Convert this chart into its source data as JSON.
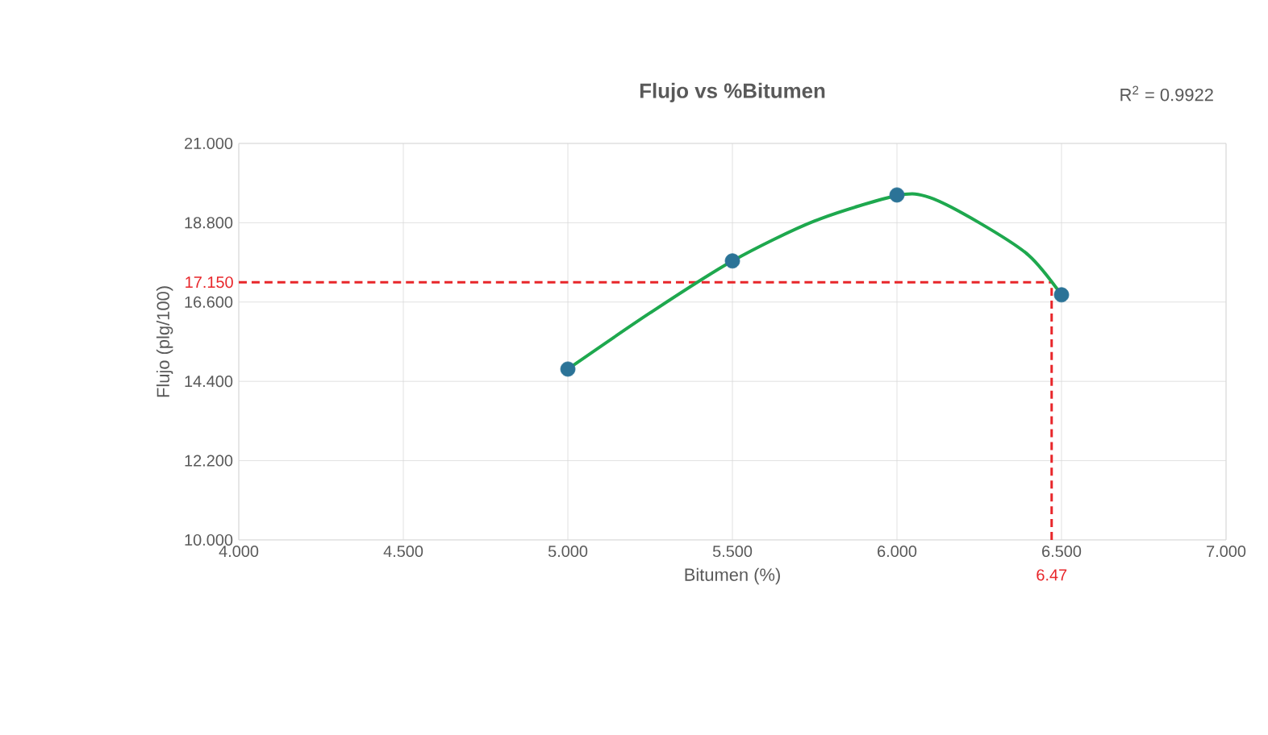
{
  "chart_data": {
    "type": "scatter",
    "title": "Flujo vs %Bitumen",
    "xlabel": "Bitumen (%)",
    "ylabel": "Flujo (plg/100)",
    "annotations": [
      "R$^{2}$ = 0.9922"
    ],
    "xlim": [
      4,
      7
    ],
    "ylim": [
      10,
      21
    ],
    "xticks": [
      {
        "value": 4,
        "label": "4.000"
      },
      {
        "value": 4.5,
        "label": "4.500"
      },
      {
        "value": 5,
        "label": "5.000"
      },
      {
        "value": 5.5,
        "label": "5.500"
      },
      {
        "value": 6,
        "label": "6.000"
      },
      {
        "value": 6.5,
        "label": "6.500"
      },
      {
        "value": 7,
        "label": "7.000"
      }
    ],
    "yticks": [
      {
        "value": 10,
        "label": "10.000"
      },
      {
        "value": 12.2,
        "label": "12.200"
      },
      {
        "value": 14.4,
        "label": "14.400"
      },
      {
        "value": 16.6,
        "label": "16.600"
      },
      {
        "value": 18.8,
        "label": "18.800"
      },
      {
        "value": 21,
        "label": "21.000"
      }
    ],
    "grid": true,
    "series": [
      {
        "type": "line",
        "color": "#1ea84e",
        "marker": "none",
        "x": [
          5.0,
          5.25,
          5.5,
          5.75,
          6.0,
          6.1,
          6.25,
          6.4,
          6.5
        ],
        "values": [
          14.74,
          16.3,
          17.74,
          18.85,
          19.55,
          19.5,
          18.8,
          17.9,
          16.8
        ]
      },
      {
        "color": "#2b7397",
        "marker": "circle",
        "x": [
          5.0,
          5.5,
          6.0,
          6.5
        ],
        "values": [
          14.74,
          17.74,
          19.57,
          16.8
        ]
      }
    ],
    "ref_lines": [
      {
        "axis": "y",
        "value": 17.15,
        "label": "17.150",
        "color": "#e8262a",
        "line_style": "dashed"
      },
      {
        "axis": "x",
        "value": 6.47,
        "label": "6.47",
        "color": "#e8262a",
        "line_style": "dashed"
      }
    ]
  }
}
